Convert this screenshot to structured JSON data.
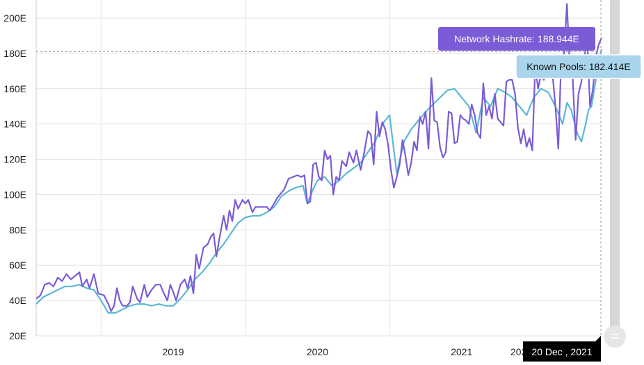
{
  "chart_data": {
    "type": "line",
    "title": "",
    "xlabel": "",
    "ylabel": "",
    "ylim": [
      20,
      200
    ],
    "y_ticks": [
      "20E",
      "40E",
      "60E",
      "80E",
      "100E",
      "120E",
      "140E",
      "160E",
      "180E",
      "200E"
    ],
    "x_ticks": [
      {
        "label": "2019",
        "x": 2019.0
      },
      {
        "label": "2020",
        "x": 2020.0
      },
      {
        "label": "2021",
        "x": 2021.0
      }
    ],
    "x_range": [
      2018.05,
      2021.97
    ],
    "grid": true,
    "series": [
      {
        "name": "Network Hashrate",
        "color": "#7b5bd6",
        "points": [
          [
            2018.05,
            41
          ],
          [
            2018.08,
            43
          ],
          [
            2018.11,
            49
          ],
          [
            2018.14,
            50
          ],
          [
            2018.17,
            48
          ],
          [
            2018.2,
            53
          ],
          [
            2018.23,
            51
          ],
          [
            2018.26,
            55
          ],
          [
            2018.29,
            52
          ],
          [
            2018.32,
            54
          ],
          [
            2018.35,
            56
          ],
          [
            2018.37,
            48
          ],
          [
            2018.4,
            52
          ],
          [
            2018.42,
            47
          ],
          [
            2018.45,
            55
          ],
          [
            2018.48,
            44
          ],
          [
            2018.52,
            43
          ],
          [
            2018.55,
            38
          ],
          [
            2018.57,
            34
          ],
          [
            2018.59,
            37
          ],
          [
            2018.61,
            47
          ],
          [
            2018.63,
            40
          ],
          [
            2018.65,
            37
          ],
          [
            2018.68,
            37
          ],
          [
            2018.7,
            39
          ],
          [
            2018.72,
            48
          ],
          [
            2018.75,
            41
          ],
          [
            2018.77,
            39
          ],
          [
            2018.8,
            49
          ],
          [
            2018.82,
            42
          ],
          [
            2018.85,
            46
          ],
          [
            2018.88,
            49
          ],
          [
            2018.91,
            49
          ],
          [
            2018.93,
            45
          ],
          [
            2018.96,
            40
          ],
          [
            2018.98,
            49
          ],
          [
            2019.0,
            45
          ],
          [
            2019.02,
            40
          ],
          [
            2019.05,
            49
          ],
          [
            2019.08,
            52
          ],
          [
            2019.1,
            47
          ],
          [
            2019.12,
            54
          ],
          [
            2019.14,
            44
          ],
          [
            2019.16,
            66
          ],
          [
            2019.18,
            58
          ],
          [
            2019.21,
            70
          ],
          [
            2019.24,
            72
          ],
          [
            2019.26,
            76
          ],
          [
            2019.28,
            78
          ],
          [
            2019.3,
            65
          ],
          [
            2019.32,
            75
          ],
          [
            2019.35,
            88
          ],
          [
            2019.37,
            80
          ],
          [
            2019.39,
            91
          ],
          [
            2019.41,
            85
          ],
          [
            2019.43,
            97
          ],
          [
            2019.45,
            92
          ],
          [
            2019.48,
            97
          ],
          [
            2019.5,
            95
          ],
          [
            2019.52,
            97
          ],
          [
            2019.55,
            90
          ],
          [
            2019.57,
            93
          ],
          [
            2019.6,
            93
          ],
          [
            2019.62,
            93
          ],
          [
            2019.65,
            93
          ],
          [
            2019.67,
            91
          ],
          [
            2019.7,
            95
          ],
          [
            2019.72,
            98
          ],
          [
            2019.75,
            101
          ],
          [
            2019.77,
            103
          ],
          [
            2019.8,
            109
          ],
          [
            2019.83,
            110
          ],
          [
            2019.86,
            111
          ],
          [
            2019.89,
            110
          ],
          [
            2019.91,
            111
          ],
          [
            2019.93,
            95
          ],
          [
            2019.95,
            96
          ],
          [
            2019.97,
            117
          ],
          [
            2019.99,
            118
          ],
          [
            2020.01,
            110
          ],
          [
            2020.03,
            108
          ],
          [
            2020.05,
            125
          ],
          [
            2020.07,
            120
          ],
          [
            2020.09,
            122
          ],
          [
            2020.11,
            100
          ],
          [
            2020.13,
            110
          ],
          [
            2020.15,
            108
          ],
          [
            2020.17,
            119
          ],
          [
            2020.2,
            116
          ],
          [
            2020.22,
            124
          ],
          [
            2020.25,
            118
          ],
          [
            2020.27,
            125
          ],
          [
            2020.3,
            114
          ],
          [
            2020.32,
            122
          ],
          [
            2020.35,
            136
          ],
          [
            2020.37,
            134
          ],
          [
            2020.39,
            117
          ],
          [
            2020.41,
            147
          ],
          [
            2020.43,
            133
          ],
          [
            2020.45,
            141
          ],
          [
            2020.47,
            137
          ],
          [
            2020.49,
            128
          ],
          [
            2020.51,
            114
          ],
          [
            2020.53,
            104
          ],
          [
            2020.55,
            110
          ],
          [
            2020.57,
            117
          ],
          [
            2020.59,
            131
          ],
          [
            2020.61,
            122
          ],
          [
            2020.63,
            111
          ],
          [
            2020.65,
            118
          ],
          [
            2020.67,
            130
          ],
          [
            2020.69,
            125
          ],
          [
            2020.71,
            144
          ],
          [
            2020.73,
            140
          ],
          [
            2020.75,
            147
          ],
          [
            2020.77,
            126
          ],
          [
            2020.79,
            166
          ],
          [
            2020.81,
            142
          ],
          [
            2020.83,
            141
          ],
          [
            2020.85,
            127
          ],
          [
            2020.87,
            121
          ],
          [
            2020.89,
            124
          ],
          [
            2020.91,
            147
          ],
          [
            2020.93,
            146
          ],
          [
            2020.95,
            129
          ],
          [
            2020.97,
            130
          ],
          [
            2020.99,
            145
          ],
          [
            2021.01,
            143
          ],
          [
            2021.03,
            142
          ],
          [
            2021.05,
            140
          ],
          [
            2021.07,
            151
          ],
          [
            2021.09,
            145
          ],
          [
            2021.11,
            135
          ],
          [
            2021.13,
            132
          ],
          [
            2021.15,
            163
          ],
          [
            2021.17,
            145
          ],
          [
            2021.19,
            150
          ],
          [
            2021.21,
            143
          ],
          [
            2021.23,
            157
          ],
          [
            2021.25,
            143
          ],
          [
            2021.27,
            141
          ],
          [
            2021.29,
            139
          ],
          [
            2021.31,
            164
          ],
          [
            2021.33,
            165
          ],
          [
            2021.35,
            165
          ],
          [
            2021.37,
            157
          ],
          [
            2021.39,
            138
          ],
          [
            2021.41,
            129
          ],
          [
            2021.43,
            137
          ],
          [
            2021.45,
            127
          ],
          [
            2021.47,
            132
          ],
          [
            2021.49,
            125
          ],
          [
            2021.51,
            173
          ],
          [
            2021.53,
            160
          ],
          [
            2021.55,
            168
          ],
          [
            2021.57,
            165
          ],
          [
            2021.59,
            172
          ],
          [
            2021.61,
            178
          ],
          [
            2021.63,
            168
          ],
          [
            2021.65,
            150
          ],
          [
            2021.67,
            126
          ],
          [
            2021.69,
            176
          ],
          [
            2021.71,
            180
          ],
          [
            2021.73,
            208
          ],
          [
            2021.75,
            172
          ],
          [
            2021.77,
            166
          ],
          [
            2021.79,
            131
          ],
          [
            2021.81,
            157
          ],
          [
            2021.83,
            164
          ],
          [
            2021.85,
            177
          ],
          [
            2021.87,
            188
          ],
          [
            2021.89,
            150
          ],
          [
            2021.91,
            160
          ],
          [
            2021.93,
            178
          ],
          [
            2021.95,
            185
          ],
          [
            2021.97,
            188.9
          ]
        ]
      },
      {
        "name": "Known Pools",
        "color": "#5bb8d6",
        "points": [
          [
            2018.05,
            38
          ],
          [
            2018.1,
            42
          ],
          [
            2018.15,
            44
          ],
          [
            2018.2,
            46
          ],
          [
            2018.25,
            48
          ],
          [
            2018.3,
            48
          ],
          [
            2018.35,
            49
          ],
          [
            2018.4,
            47
          ],
          [
            2018.45,
            46
          ],
          [
            2018.5,
            40
          ],
          [
            2018.55,
            33
          ],
          [
            2018.6,
            33
          ],
          [
            2018.65,
            35
          ],
          [
            2018.7,
            37
          ],
          [
            2018.75,
            38
          ],
          [
            2018.8,
            38
          ],
          [
            2018.85,
            37
          ],
          [
            2018.9,
            38
          ],
          [
            2018.95,
            37
          ],
          [
            2019.0,
            37
          ],
          [
            2019.05,
            41
          ],
          [
            2019.1,
            46
          ],
          [
            2019.15,
            52
          ],
          [
            2019.2,
            56
          ],
          [
            2019.25,
            61
          ],
          [
            2019.3,
            67
          ],
          [
            2019.35,
            72
          ],
          [
            2019.4,
            78
          ],
          [
            2019.45,
            84
          ],
          [
            2019.5,
            87
          ],
          [
            2019.55,
            88
          ],
          [
            2019.6,
            88
          ],
          [
            2019.65,
            90
          ],
          [
            2019.7,
            93
          ],
          [
            2019.75,
            99
          ],
          [
            2019.8,
            102
          ],
          [
            2019.85,
            104
          ],
          [
            2019.9,
            105
          ],
          [
            2019.93,
            95
          ],
          [
            2019.97,
            103
          ],
          [
            2020.0,
            108
          ],
          [
            2020.05,
            110
          ],
          [
            2020.1,
            105
          ],
          [
            2020.15,
            108
          ],
          [
            2020.2,
            112
          ],
          [
            2020.25,
            115
          ],
          [
            2020.3,
            118
          ],
          [
            2020.35,
            124
          ],
          [
            2020.4,
            130
          ],
          [
            2020.45,
            140
          ],
          [
            2020.5,
            145
          ],
          [
            2020.55,
            112
          ],
          [
            2020.6,
            130
          ],
          [
            2020.65,
            137
          ],
          [
            2020.7,
            142
          ],
          [
            2020.75,
            147
          ],
          [
            2020.8,
            151
          ],
          [
            2020.85,
            155
          ],
          [
            2020.9,
            159
          ],
          [
            2020.95,
            160
          ],
          [
            2021.0,
            155
          ],
          [
            2021.05,
            150
          ],
          [
            2021.1,
            135
          ],
          [
            2021.15,
            155
          ],
          [
            2021.2,
            150
          ],
          [
            2021.25,
            160
          ],
          [
            2021.3,
            158
          ],
          [
            2021.35,
            155
          ],
          [
            2021.4,
            150
          ],
          [
            2021.45,
            145
          ],
          [
            2021.5,
            155
          ],
          [
            2021.55,
            160
          ],
          [
            2021.6,
            158
          ],
          [
            2021.65,
            150
          ],
          [
            2021.7,
            140
          ],
          [
            2021.73,
            152
          ],
          [
            2021.76,
            148
          ],
          [
            2021.8,
            135
          ],
          [
            2021.83,
            130
          ],
          [
            2021.86,
            140
          ],
          [
            2021.88,
            148
          ],
          [
            2021.9,
            150
          ],
          [
            2021.93,
            165
          ],
          [
            2021.95,
            175
          ],
          [
            2021.97,
            182.4
          ]
        ]
      }
    ],
    "cursor_value": 181
  },
  "tooltips": {
    "hashrate_label": "Network Hashrate: 188.944E",
    "pools_label": "Known Pools: 182.414E",
    "date_label": "20 Dec , 2021"
  },
  "colors": {
    "hashrate": "#7b5bd6",
    "pools": "#5bb8d6",
    "tooltip_hashrate_bg": "#7b5bd6",
    "tooltip_pools_bg": "#a8d4ec",
    "grid": "#e2e2e2",
    "scrollbar": "#d6d6d6"
  }
}
